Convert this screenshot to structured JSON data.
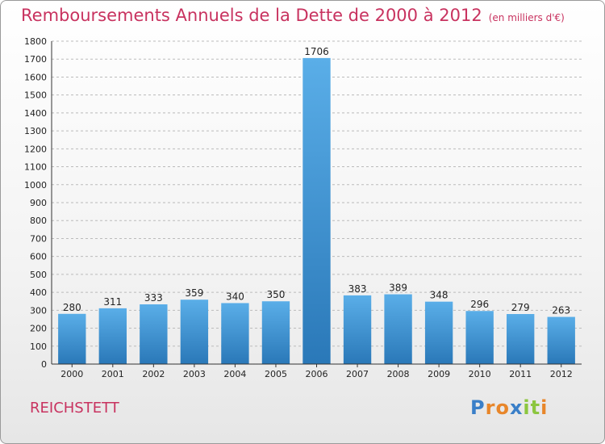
{
  "header": {
    "title": "Remboursements Annuels de la Dette de 2000 à 2012",
    "unit": "(en milliers d'€)"
  },
  "footer": {
    "city": "REICHSTETT",
    "logo": {
      "letters": [
        "P",
        "r",
        "o",
        "x",
        "i",
        "t",
        "i"
      ],
      "colors": [
        "#3a7fc8",
        "#e8862a",
        "#e8862a",
        "#3a7fc8",
        "#8cc63f",
        "#8cc63f",
        "#e8862a"
      ]
    }
  },
  "colors": {
    "bar_light": "#5aaee8",
    "bar_dark": "#2a78b8",
    "grid": "#bbbbbb",
    "title": "#c8325f"
  },
  "chart_data": {
    "type": "bar",
    "title": "Remboursements Annuels de la Dette de 2000 à 2012",
    "categories": [
      "2000",
      "2001",
      "2002",
      "2003",
      "2004",
      "2005",
      "2006",
      "2007",
      "2008",
      "2009",
      "2010",
      "2011",
      "2012"
    ],
    "values": [
      280,
      311,
      333,
      359,
      340,
      350,
      1706,
      383,
      389,
      348,
      296,
      279,
      263
    ],
    "ylim": [
      0,
      1800
    ],
    "yticks": [
      0,
      100,
      200,
      300,
      400,
      500,
      600,
      700,
      800,
      900,
      1000,
      1100,
      1200,
      1300,
      1400,
      1500,
      1600,
      1700,
      1800
    ],
    "grid": true,
    "xlabel": "",
    "ylabel": ""
  }
}
